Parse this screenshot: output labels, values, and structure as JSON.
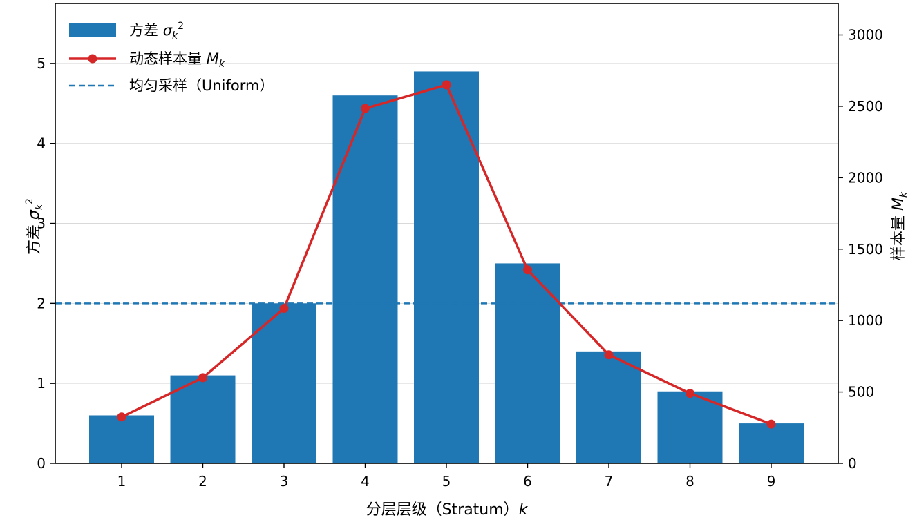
{
  "chart_data": {
    "type": "bar",
    "categories": [
      "1",
      "2",
      "3",
      "4",
      "5",
      "6",
      "7",
      "8",
      "9"
    ],
    "series": [
      {
        "name": "方差 σ²ₖ",
        "type": "bar",
        "axis": "left",
        "color": "#1f77b4",
        "values": [
          0.6,
          1.1,
          2.0,
          4.6,
          4.9,
          2.5,
          1.4,
          0.9,
          0.5
        ]
      },
      {
        "name": "动态样本量 Mₖ",
        "type": "line",
        "axis": "right",
        "color": "#d62728",
        "values": [
          325,
          600,
          1085,
          2485,
          2650,
          1355,
          760,
          490,
          275
        ]
      },
      {
        "name": "均匀采样（Uniform）",
        "type": "hline",
        "axis": "left",
        "color": "#1f77b4",
        "value": 2.0
      }
    ],
    "xlabel": "分层层级（Stratum）k",
    "ylabel": "方差 σ²ₖ",
    "y2label": "样本量 Mₖ",
    "ylim": [
      0,
      5.75
    ],
    "y2lim": [
      0,
      3220
    ],
    "yticks": [
      "0",
      "1",
      "2",
      "3",
      "4",
      "5"
    ],
    "y2ticks": [
      "0",
      "500",
      "1000",
      "1500",
      "2000",
      "2500",
      "3000"
    ],
    "grid": "horizontal",
    "legend_position": "top-left"
  }
}
